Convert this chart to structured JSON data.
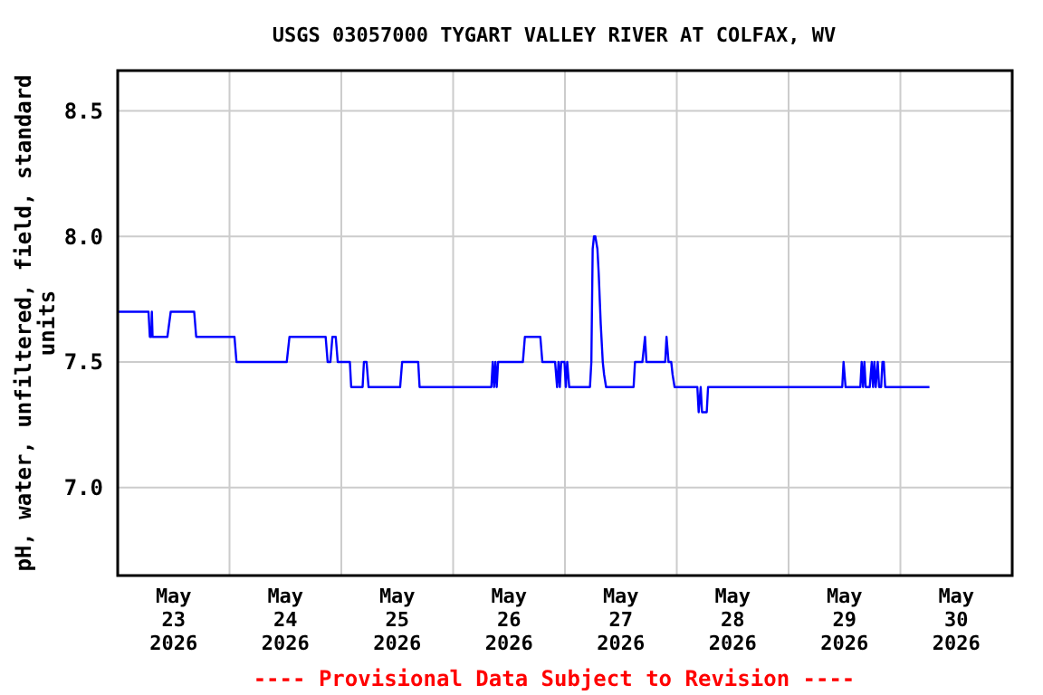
{
  "chart_data": {
    "type": "line",
    "title": "USGS 03057000 TYGART VALLEY RIVER AT COLFAX, WV",
    "ylabel": "pH, water, unfiltered, field, standard units",
    "annotations": [
      "---- Provisional Data Subject to Revision ----"
    ],
    "x": [
      "2026-05-23T00:00",
      "2026-05-23T06:37",
      "2026-05-23T06:54",
      "2026-05-23T07:12",
      "2026-05-23T07:20",
      "2026-05-23T07:29",
      "2026-05-23T10:40",
      "2026-05-23T11:23",
      "2026-05-23T16:25",
      "2026-05-23T16:51",
      "2026-05-24T01:04",
      "2026-05-24T01:30",
      "2026-05-24T12:17",
      "2026-05-24T12:52",
      "2026-05-24T20:38",
      "2026-05-24T21:04",
      "2026-05-24T21:39",
      "2026-05-24T22:05",
      "2026-05-24T22:48",
      "2026-05-24T23:14",
      "2026-05-25T01:50",
      "2026-05-25T02:07",
      "2026-05-25T04:34",
      "2026-05-25T04:51",
      "2026-05-25T05:25",
      "2026-05-25T05:51",
      "2026-05-25T12:37",
      "2026-05-25T13:03",
      "2026-05-25T16:30",
      "2026-05-25T16:48",
      "2026-05-26T08:12",
      "2026-05-26T08:30",
      "2026-05-26T08:47",
      "2026-05-26T09:04",
      "2026-05-26T09:21",
      "2026-05-26T09:39",
      "2026-05-26T14:58",
      "2026-05-26T15:24",
      "2026-05-26T18:43",
      "2026-05-26T19:09",
      "2026-05-26T21:53",
      "2026-05-26T22:19",
      "2026-05-26T22:37",
      "2026-05-26T22:54",
      "2026-05-26T23:11",
      "2026-05-26T23:37",
      "2026-05-26T23:54",
      "2026-05-27T00:11",
      "2026-05-27T00:29",
      "2026-05-27T00:55",
      "2026-05-27T05:22",
      "2026-05-27T05:40",
      "2026-05-27T05:57",
      "2026-05-27T06:14",
      "2026-05-27T06:31",
      "2026-05-27T06:58",
      "2026-05-27T07:15",
      "2026-05-27T07:41",
      "2026-05-27T08:07",
      "2026-05-27T08:24",
      "2026-05-27T08:50",
      "2026-05-27T14:44",
      "2026-05-27T15:02",
      "2026-05-27T16:37",
      "2026-05-27T16:54",
      "2026-05-27T17:11",
      "2026-05-27T17:29",
      "2026-05-27T21:31",
      "2026-05-27T21:48",
      "2026-05-27T22:14",
      "2026-05-27T22:49",
      "2026-05-27T23:06",
      "2026-05-27T23:32",
      "2026-05-28T04:25",
      "2026-05-28T04:42",
      "2026-05-28T05:08",
      "2026-05-28T05:25",
      "2026-05-28T06:26",
      "2026-05-28T06:43",
      "2026-05-29T11:31",
      "2026-05-29T11:48",
      "2026-05-29T12:14",
      "2026-05-29T15:24",
      "2026-05-29T15:41",
      "2026-05-29T15:59",
      "2026-05-29T16:16",
      "2026-05-29T16:33",
      "2026-05-29T17:25",
      "2026-05-29T17:51",
      "2026-05-29T18:08",
      "2026-05-29T18:25",
      "2026-05-29T18:42",
      "2026-05-29T19:08",
      "2026-05-29T19:26",
      "2026-05-29T19:52",
      "2026-05-29T20:09",
      "2026-05-29T20:26",
      "2026-05-29T20:44",
      "2026-05-30T06:14"
    ],
    "series": [
      {
        "color": "#0000ff",
        "values": [
          7.7,
          7.7,
          7.6,
          7.6,
          7.7,
          7.6,
          7.6,
          7.7,
          7.7,
          7.6,
          7.6,
          7.5,
          7.5,
          7.6,
          7.6,
          7.5,
          7.5,
          7.6,
          7.6,
          7.5,
          7.5,
          7.4,
          7.4,
          7.5,
          7.5,
          7.4,
          7.4,
          7.5,
          7.5,
          7.4,
          7.4,
          7.5,
          7.4,
          7.5,
          7.4,
          7.5,
          7.5,
          7.6,
          7.6,
          7.5,
          7.5,
          7.4,
          7.5,
          7.4,
          7.5,
          7.5,
          7.5,
          7.4,
          7.5,
          7.4,
          7.4,
          7.5,
          7.95,
          8.0,
          8.0,
          7.95,
          7.85,
          7.65,
          7.5,
          7.45,
          7.4,
          7.4,
          7.5,
          7.5,
          7.55,
          7.6,
          7.5,
          7.5,
          7.6,
          7.5,
          7.5,
          7.45,
          7.4,
          7.4,
          7.3,
          7.4,
          7.3,
          7.3,
          7.4,
          7.4,
          7.5,
          7.4,
          7.4,
          7.5,
          7.4,
          7.5,
          7.4,
          7.4,
          7.5,
          7.4,
          7.5,
          7.4,
          7.5,
          7.4,
          7.4,
          7.5,
          7.5,
          7.4,
          7.4
        ]
      }
    ],
    "xlim": [
      "2026-05-23T00:00",
      "2026-05-31T00:00"
    ],
    "xticks": [
      {
        "value": "2026-05-23T12:00",
        "label": "May 23 2026"
      },
      {
        "value": "2026-05-24T12:00",
        "label": "May 24 2026"
      },
      {
        "value": "2026-05-25T12:00",
        "label": "May 25 2026"
      },
      {
        "value": "2026-05-26T12:00",
        "label": "May 26 2026"
      },
      {
        "value": "2026-05-27T12:00",
        "label": "May 27 2026"
      },
      {
        "value": "2026-05-28T12:00",
        "label": "May 28 2026"
      },
      {
        "value": "2026-05-29T12:00",
        "label": "May 29 2026"
      },
      {
        "value": "2026-05-30T12:00",
        "label": "May 30 2026"
      },
      {
        "value": "2026-05-24T00:00",
        "label": null
      },
      {
        "value": "2026-05-25T00:00",
        "label": null
      },
      {
        "value": "2026-05-26T00:00",
        "label": null
      },
      {
        "value": "2026-05-27T00:00",
        "label": null
      },
      {
        "value": "2026-05-28T00:00",
        "label": null
      },
      {
        "value": "2026-05-29T00:00",
        "label": null
      },
      {
        "value": "2026-05-30T00:00",
        "label": null
      }
    ],
    "ylim": [
      6.65,
      8.66
    ],
    "yticks": [
      {
        "value": 7,
        "label": "7.0"
      },
      7.5,
      {
        "value": 8,
        "label": "8.0"
      },
      8.5
    ],
    "grid": true,
    "marker": "none",
    "line_style": "solid"
  }
}
